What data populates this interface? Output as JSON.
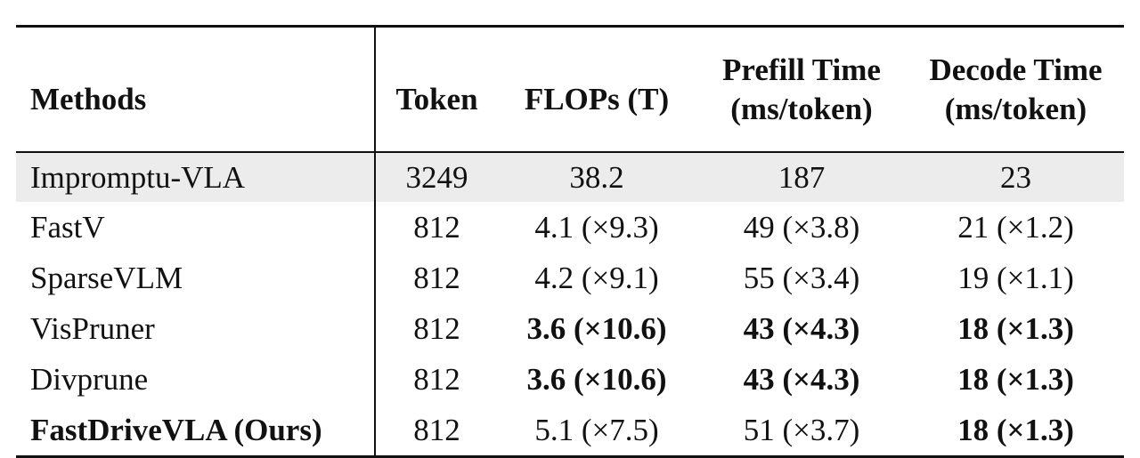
{
  "table": {
    "headers": {
      "methods": "Methods",
      "token": "Token",
      "flops": "FLOPs (T)",
      "prefill_line1": "Prefill Time",
      "prefill_line2": "(ms/token)",
      "decode_line1": "Decode Time",
      "decode_line2": "(ms/token)"
    },
    "rows": [
      {
        "method": "Impromptu-VLA",
        "token": "3249",
        "flops": "38.2",
        "prefill": "187",
        "decode": "23"
      },
      {
        "method": "FastV",
        "token": "812",
        "flops": "4.1 (×9.3)",
        "prefill": "49 (×3.8)",
        "decode": "21 (×1.2)"
      },
      {
        "method": "SparseVLM",
        "token": "812",
        "flops": "4.2 (×9.1)",
        "prefill": "55 (×3.4)",
        "decode": "19 (×1.1)"
      },
      {
        "method": "VisPruner",
        "token": "812",
        "flops": "3.6 (×10.6)",
        "prefill": "43 (×4.3)",
        "decode": "18 (×1.3)"
      },
      {
        "method": "Divprune",
        "token": "812",
        "flops": "3.6 (×10.6)",
        "prefill": "43 (×4.3)",
        "decode": "18 (×1.3)"
      },
      {
        "method": "FastDriveVLA (Ours)",
        "token": "812",
        "flops": "5.1 (×7.5)",
        "prefill": "51 (×3.7)",
        "decode": "18 (×1.3)"
      }
    ]
  }
}
